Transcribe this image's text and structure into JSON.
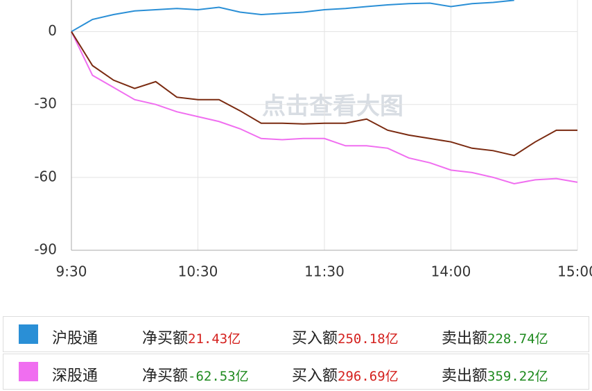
{
  "chart_data": {
    "type": "line",
    "watermark": "点击查看大图",
    "xlim": [
      0,
      240
    ],
    "xticks": [
      {
        "value": 0,
        "label": "9:30"
      },
      {
        "value": 60,
        "label": "10:30"
      },
      {
        "value": 120,
        "label": "11:30"
      },
      {
        "value": 180,
        "label": "14:00"
      },
      {
        "value": 240,
        "label": "15:00"
      }
    ],
    "ylim": [
      -90,
      13
    ],
    "yticks": [
      0,
      -30,
      -60,
      -90
    ],
    "grid": true,
    "series": [
      {
        "name": "沪股通",
        "color": "#2a8fd6",
        "x": [
          0,
          10,
          20,
          30,
          40,
          50,
          60,
          70,
          80,
          90,
          100,
          110,
          120,
          130,
          140,
          150,
          160,
          170,
          180,
          190,
          200,
          210
        ],
        "values": [
          0,
          5,
          7,
          8.5,
          9,
          9.5,
          9,
          10,
          8,
          7,
          7.5,
          8,
          9,
          9.5,
          10.3,
          11,
          11.5,
          11.7,
          10.3,
          11.5,
          12,
          12.9
        ]
      },
      {
        "name": "深股通",
        "color": "#f06ef0",
        "x": [
          0,
          10,
          20,
          30,
          40,
          50,
          60,
          70,
          80,
          90,
          100,
          110,
          120,
          130,
          140,
          150,
          160,
          170,
          180,
          190,
          200,
          210,
          220,
          230,
          240
        ],
        "values": [
          0,
          -18,
          -23,
          -28,
          -30,
          -33,
          -35,
          -37,
          -40,
          -44,
          -44.5,
          -44,
          -44,
          -47,
          -47,
          -48,
          -52,
          -54,
          -57,
          -58,
          -60,
          -62.6,
          -61,
          -60.5,
          -62
        ]
      },
      {
        "color": "#7a2a10",
        "x": [
          0,
          10,
          20,
          30,
          40,
          50,
          60,
          70,
          80,
          90,
          100,
          110,
          120,
          130,
          140,
          150,
          160,
          170,
          180,
          190,
          200,
          210,
          220,
          230,
          240
        ],
        "values": [
          0,
          -14,
          -20,
          -23.4,
          -20.6,
          -27,
          -28,
          -28,
          -32.6,
          -37.7,
          -37.7,
          -38,
          -37.7,
          -37.7,
          -36,
          -40.6,
          -42.6,
          -44,
          -45.4,
          -48,
          -49,
          -51,
          -45.4,
          -40.6,
          -40.6
        ]
      }
    ]
  },
  "table": {
    "rows": [
      {
        "net_label": "净买额",
        "net": "21.43亿",
        "buy_label": "买入额",
        "buy": "250.18亿",
        "sell_label": "卖出额",
        "sell": "228.74亿"
      },
      {
        "net_label": "净买额",
        "net": "-62.53亿",
        "buy_label": "买入额",
        "buy": "296.69亿",
        "sell_label": "卖出额",
        "sell": "359.22亿"
      }
    ]
  }
}
